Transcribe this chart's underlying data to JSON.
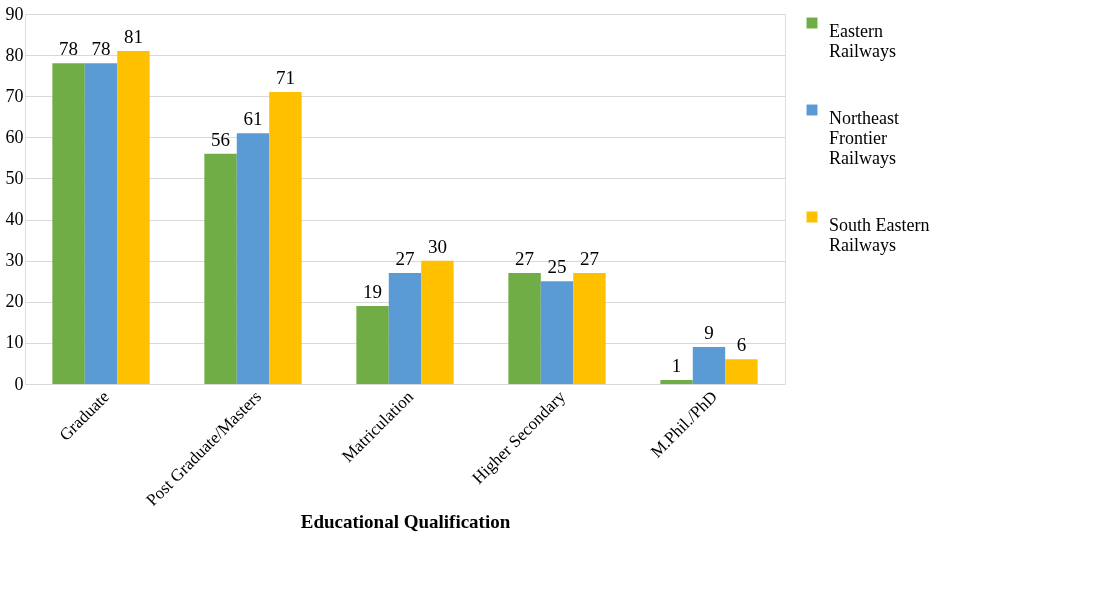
{
  "chart_data": {
    "type": "bar",
    "xlabel": "Educational Qualification",
    "categories": [
      "Graduate",
      "Post Graduate/Masters",
      "Matriculation",
      "Higher Secondary",
      "M.Phil./PhD"
    ],
    "series": [
      {
        "name": "Eastern Railways",
        "color": "#70ad47",
        "values": [
          78,
          56,
          19,
          27,
          1
        ]
      },
      {
        "name": "Northeast Frontier Railways",
        "color": "#5b9bd5",
        "values": [
          78,
          61,
          27,
          25,
          9
        ]
      },
      {
        "name": "South Eastern Railways",
        "color": "#ffc000",
        "values": [
          81,
          71,
          30,
          27,
          6
        ]
      }
    ],
    "ylim": [
      0,
      90
    ],
    "yticks": [
      0,
      10,
      20,
      30,
      40,
      50,
      60,
      70,
      80,
      90
    ],
    "grid": "y",
    "legend": "right",
    "data_labels": true
  }
}
